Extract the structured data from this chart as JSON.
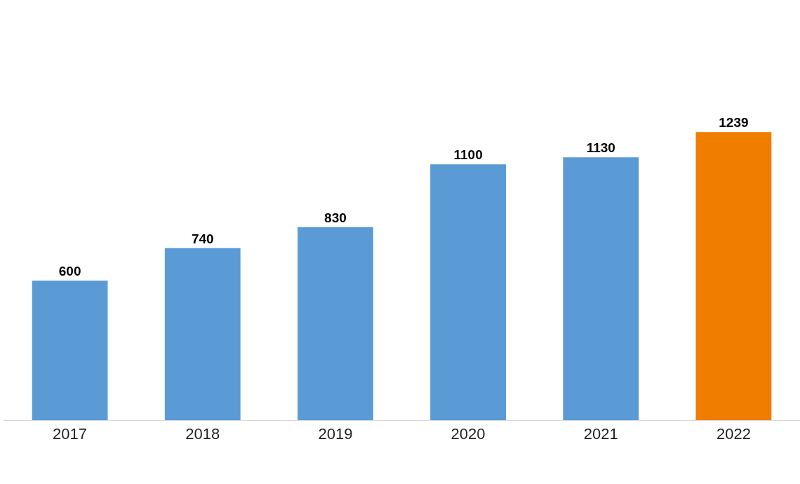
{
  "chart_data": {
    "type": "bar",
    "categories": [
      "2017",
      "2018",
      "2019",
      "2020",
      "2021",
      "2022"
    ],
    "values": [
      600,
      740,
      830,
      1100,
      1130,
      1239
    ],
    "colors": [
      "#5b9bd5",
      "#5b9bd5",
      "#5b9bd5",
      "#5b9bd5",
      "#5b9bd5",
      "#ef7d00"
    ],
    "data_labels": true
  }
}
